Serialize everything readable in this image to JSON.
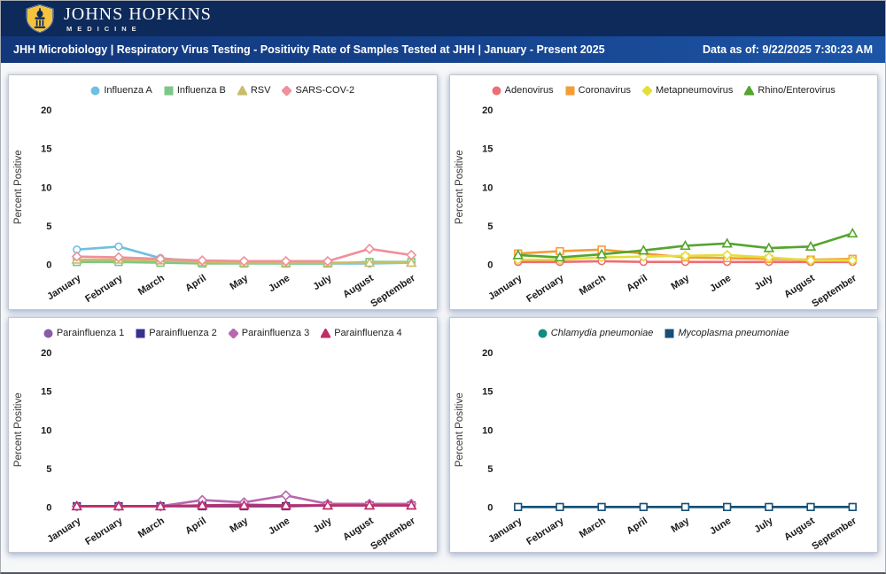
{
  "header": {
    "brand_line1": "JOHNS HOPKINS",
    "brand_line2": "MEDICINE",
    "title": "JHH Microbiology | Respiratory Virus Testing - Positivity Rate of Samples Tested at JHH | January - Present 2025",
    "data_as_of": "Data as of: 9/22/2025 7:30:23 AM",
    "brand_band_color": "#0d2a5a",
    "title_band_color": "#16448f",
    "shield_gold": "#f5c33c"
  },
  "months": [
    "January",
    "February",
    "March",
    "April",
    "May",
    "June",
    "July",
    "August",
    "September"
  ],
  "chart_data": [
    {
      "type": "line",
      "name": "influenza-rsv-sars",
      "categories": [
        "January",
        "February",
        "March",
        "April",
        "May",
        "June",
        "July",
        "August",
        "September"
      ],
      "ylabel": "Percent Positive",
      "xlabel": "",
      "ylim": [
        0,
        20
      ],
      "yticks": [
        0,
        5,
        10,
        15,
        20
      ],
      "grid": false,
      "legend_position": "top",
      "legend_italic": false,
      "series": [
        {
          "name": "Influenza A",
          "color": "#6fc0de",
          "marker": "circle",
          "values": [
            1.9,
            2.3,
            0.8,
            0.3,
            0.2,
            0.1,
            0.1,
            0.1,
            0.2
          ]
        },
        {
          "name": "Influenza B",
          "color": "#7ec887",
          "marker": "square",
          "values": [
            0.3,
            0.3,
            0.2,
            0.1,
            0.1,
            0.1,
            0.1,
            0.3,
            0.3
          ]
        },
        {
          "name": "RSV",
          "color": "#c9bd6b",
          "marker": "triangle",
          "values": [
            0.6,
            0.6,
            0.5,
            0.3,
            0.2,
            0.2,
            0.2,
            0.2,
            0.2
          ]
        },
        {
          "name": "SARS-COV-2",
          "color": "#f0909a",
          "marker": "diamond",
          "values": [
            1.0,
            0.9,
            0.7,
            0.5,
            0.4,
            0.4,
            0.4,
            2.0,
            1.2
          ]
        }
      ]
    },
    {
      "type": "line",
      "name": "adeno-corona-metapneumo-rhino",
      "categories": [
        "January",
        "February",
        "March",
        "April",
        "May",
        "June",
        "July",
        "August",
        "September"
      ],
      "ylabel": "Percent Positive",
      "xlabel": "",
      "ylim": [
        0,
        20
      ],
      "yticks": [
        0,
        5,
        10,
        15,
        20
      ],
      "grid": false,
      "legend_position": "top",
      "legend_italic": false,
      "series": [
        {
          "name": "Adenovirus",
          "color": "#ed6f74",
          "marker": "circle",
          "values": [
            0.3,
            0.3,
            0.4,
            0.3,
            0.3,
            0.3,
            0.3,
            0.3,
            0.3
          ]
        },
        {
          "name": "Coronavirus",
          "color": "#f49d37",
          "marker": "square",
          "values": [
            1.4,
            1.7,
            1.9,
            1.4,
            0.9,
            0.8,
            0.7,
            0.6,
            0.7
          ]
        },
        {
          "name": "Metapneumovirus",
          "color": "#e4de3d",
          "marker": "diamond",
          "values": [
            0.6,
            0.6,
            0.9,
            1.0,
            1.1,
            1.2,
            0.9,
            0.5,
            0.5
          ]
        },
        {
          "name": "Rhino/Enterovirus",
          "color": "#55a52f",
          "marker": "triangle",
          "values": [
            1.2,
            0.9,
            1.3,
            1.8,
            2.4,
            2.7,
            2.1,
            2.3,
            4.0
          ]
        }
      ]
    },
    {
      "type": "line",
      "name": "parainfluenza",
      "categories": [
        "January",
        "February",
        "March",
        "April",
        "May",
        "June",
        "July",
        "August",
        "September"
      ],
      "ylabel": "Percent Positive",
      "xlabel": "",
      "ylim": [
        0,
        20
      ],
      "yticks": [
        0,
        5,
        10,
        15,
        20
      ],
      "grid": false,
      "legend_position": "top",
      "legend_italic": false,
      "series": [
        {
          "name": "Parainfluenza 1",
          "color": "#8a5ba8",
          "marker": "circle",
          "values": [
            0.1,
            0.1,
            0.1,
            0.2,
            0.3,
            0.2,
            0.2,
            0.3,
            0.3
          ]
        },
        {
          "name": "Parainfluenza 2",
          "color": "#37318f",
          "marker": "square",
          "values": [
            0.1,
            0.1,
            0.1,
            0.1,
            0.1,
            0.1,
            0.2,
            0.2,
            0.2
          ]
        },
        {
          "name": "Parainfluenza 3",
          "color": "#b668af",
          "marker": "diamond",
          "values": [
            0.1,
            0.1,
            0.1,
            0.9,
            0.6,
            1.5,
            0.4,
            0.4,
            0.4
          ]
        },
        {
          "name": "Parainfluenza 4",
          "color": "#bf2d69",
          "marker": "triangle",
          "values": [
            0.1,
            0.1,
            0.1,
            0.2,
            0.2,
            0.2,
            0.2,
            0.2,
            0.2
          ]
        }
      ]
    },
    {
      "type": "line",
      "name": "atypical-pneumonia",
      "categories": [
        "January",
        "February",
        "March",
        "April",
        "May",
        "June",
        "July",
        "August",
        "September"
      ],
      "ylabel": "Percent Positive",
      "xlabel": "",
      "ylim": [
        0,
        20
      ],
      "yticks": [
        0,
        5,
        10,
        15,
        20
      ],
      "grid": false,
      "legend_position": "top",
      "legend_italic": true,
      "series": [
        {
          "name": "Chlamydia pneumoniae",
          "color": "#0f8d80",
          "marker": "circle",
          "values": [
            0,
            0,
            0,
            0,
            0,
            0,
            0,
            0,
            0
          ]
        },
        {
          "name": "Mycoplasma pneumoniae",
          "color": "#174f77",
          "marker": "square",
          "values": [
            0,
            0,
            0,
            0,
            0,
            0,
            0,
            0,
            0
          ]
        }
      ]
    }
  ]
}
